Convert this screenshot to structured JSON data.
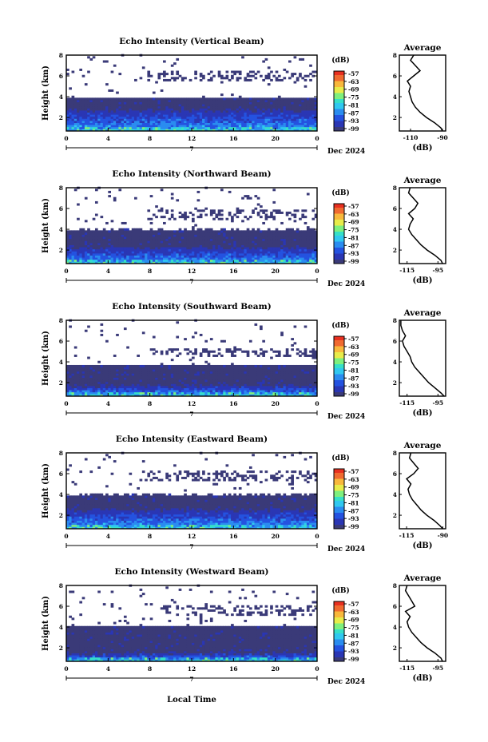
{
  "colors": {
    "colormap": [
      "#3a3a78",
      "#2a36b4",
      "#2452e0",
      "#2a8cf0",
      "#30c8f0",
      "#36e0c8",
      "#7ef07e",
      "#e8ec4a",
      "#f8b83c",
      "#f06a30",
      "#e83020"
    ],
    "background": "#ffffff"
  },
  "x_axis_label": "Local Time",
  "height_label": "Height (km)",
  "colorbar_unit": "(dB)",
  "colorbar_ticks": [
    "-57",
    "-63",
    "-69",
    "-75",
    "-81",
    "-87",
    "-93",
    "-99"
  ],
  "avg_title": "Average",
  "avg_unit": "(dB)",
  "date_label": "Dec 2024",
  "day_label": "7",
  "chart_data": [
    {
      "type": "heatmap",
      "title": "Echo Intensity (Vertical Beam)",
      "ylabel": "Height (km)",
      "xlabel": "Local Time",
      "xlim": [
        0,
        24
      ],
      "ylim": [
        0.7,
        8
      ],
      "x_ticks": [
        "0",
        "4",
        "8",
        "12",
        "16",
        "20",
        "0"
      ],
      "y_ticks": [
        "2",
        "4",
        "6",
        "8"
      ],
      "colorbar": {
        "unit": "(dB)",
        "ticks": [
          -57,
          -63,
          -69,
          -75,
          -81,
          -87,
          -93,
          -99
        ]
      },
      "layers": {
        "strong_top_km": 2.6,
        "cloud_top_km": 3.8,
        "upper_band_km": [
          5.5,
          6.5
        ],
        "upper_band_start_h": 7.5
      },
      "average_profile": {
        "title": "Average",
        "xlabel": "(dB)",
        "x_ticks": [
          "-110",
          "-90"
        ],
        "xlim": [
          -117,
          -88
        ],
        "heights": [
          0.7,
          1.0,
          1.5,
          2.0,
          2.5,
          3.0,
          3.5,
          4.0,
          4.5,
          5.0,
          5.5,
          6.0,
          6.5,
          7.0,
          7.5,
          8.0
        ],
        "values": [
          -90,
          -91,
          -95,
          -100,
          -104,
          -107,
          -109,
          -110,
          -111,
          -110,
          -112,
          -108,
          -104,
          -107,
          -110,
          -108
        ]
      }
    },
    {
      "type": "heatmap",
      "title": "Echo Intensity (Northward Beam)",
      "ylabel": "Height (km)",
      "xlabel": "Local Time",
      "xlim": [
        0,
        24
      ],
      "ylim": [
        0.7,
        8
      ],
      "x_ticks": [
        "0",
        "4",
        "8",
        "12",
        "16",
        "20",
        "0"
      ],
      "y_ticks": [
        "2",
        "4",
        "6",
        "8"
      ],
      "colorbar": {
        "unit": "(dB)",
        "ticks": [
          -57,
          -63,
          -69,
          -75,
          -81,
          -87,
          -93,
          -99
        ]
      },
      "layers": {
        "strong_top_km": 2.1,
        "cloud_top_km": 3.9,
        "upper_band_km": [
          4.8,
          5.8
        ],
        "upper_band_start_h": 7.5
      },
      "average_profile": {
        "title": "Average",
        "xlabel": "(dB)",
        "x_ticks": [
          "-115",
          "-95"
        ],
        "xlim": [
          -120,
          -90
        ],
        "heights": [
          0.7,
          1.0,
          1.5,
          2.0,
          2.5,
          3.0,
          3.5,
          4.0,
          4.5,
          5.0,
          5.5,
          6.0,
          6.5,
          7.0,
          7.5,
          8.0
        ],
        "values": [
          -92,
          -93,
          -97,
          -102,
          -106,
          -109,
          -112,
          -114,
          -113,
          -111,
          -114,
          -110,
          -108,
          -111,
          -114,
          -113
        ]
      }
    },
    {
      "type": "heatmap",
      "title": "Echo Intensity (Southward Beam)",
      "ylabel": "Height (km)",
      "xlabel": "Local Time",
      "xlim": [
        0,
        24
      ],
      "ylim": [
        0.7,
        8
      ],
      "x_ticks": [
        "0",
        "4",
        "8",
        "12",
        "16",
        "20",
        "0"
      ],
      "y_ticks": [
        "2",
        "4",
        "6",
        "8"
      ],
      "colorbar": {
        "unit": "(dB)",
        "ticks": [
          -57,
          -63,
          -69,
          -75,
          -81,
          -87,
          -93,
          -99
        ]
      },
      "layers": {
        "strong_top_km": 1.6,
        "cloud_top_km": 3.6,
        "upper_band_km": [
          4.5,
          5.3
        ],
        "upper_band_start_h": 8
      },
      "average_profile": {
        "title": "Average",
        "xlabel": "(dB)",
        "x_ticks": [
          "-115",
          "-95"
        ],
        "xlim": [
          -120,
          -90
        ],
        "heights": [
          0.7,
          1.0,
          1.5,
          2.0,
          2.5,
          3.0,
          3.5,
          4.0,
          4.5,
          5.0,
          5.5,
          6.0,
          6.5,
          7.0,
          7.5,
          8.0
        ],
        "values": [
          -91,
          -93,
          -97,
          -101,
          -104,
          -107,
          -110,
          -112,
          -113,
          -115,
          -117,
          -118,
          -116,
          -118,
          -119,
          -119
        ]
      }
    },
    {
      "type": "heatmap",
      "title": "Echo Intensity (Eastward Beam)",
      "ylabel": "Height (km)",
      "xlabel": "Local Time",
      "xlim": [
        0,
        24
      ],
      "ylim": [
        0.7,
        8
      ],
      "x_ticks": [
        "0",
        "4",
        "8",
        "12",
        "16",
        "20",
        "0"
      ],
      "y_ticks": [
        "2",
        "4",
        "6",
        "8"
      ],
      "colorbar": {
        "unit": "(dB)",
        "ticks": [
          -57,
          -63,
          -69,
          -75,
          -81,
          -87,
          -93,
          -99
        ]
      },
      "layers": {
        "strong_top_km": 2.4,
        "cloud_top_km": 3.9,
        "upper_band_km": [
          5.2,
          6.3
        ],
        "upper_band_start_h": 7.5
      },
      "average_profile": {
        "title": "Average",
        "xlabel": "(dB)",
        "x_ticks": [
          "-115",
          "-90"
        ],
        "xlim": [
          -120,
          -88
        ],
        "heights": [
          0.7,
          1.0,
          1.5,
          2.0,
          2.5,
          3.0,
          3.5,
          4.0,
          4.5,
          5.0,
          5.5,
          6.0,
          6.5,
          7.0,
          7.5,
          8.0
        ],
        "values": [
          -90,
          -92,
          -96,
          -101,
          -105,
          -108,
          -111,
          -113,
          -114,
          -112,
          -115,
          -110,
          -107,
          -110,
          -113,
          -112
        ]
      }
    },
    {
      "type": "heatmap",
      "title": "Echo Intensity (Westward Beam)",
      "ylabel": "Height (km)",
      "xlabel": "Local Time",
      "xlim": [
        0,
        24
      ],
      "ylim": [
        0.7,
        8
      ],
      "x_ticks": [
        "0",
        "4",
        "8",
        "12",
        "16",
        "20",
        "0"
      ],
      "y_ticks": [
        "2",
        "4",
        "6",
        "8"
      ],
      "colorbar": {
        "unit": "(dB)",
        "ticks": [
          -57,
          -63,
          -69,
          -75,
          -81,
          -87,
          -93,
          -99
        ]
      },
      "layers": {
        "strong_top_km": 1.4,
        "cloud_top_km": 4.0,
        "upper_band_km": [
          5.0,
          6.0
        ],
        "upper_band_start_h": 9
      },
      "average_profile": {
        "title": "Average",
        "xlabel": "(dB)",
        "x_ticks": [
          "-115",
          "-95"
        ],
        "xlim": [
          -120,
          -90
        ],
        "heights": [
          0.7,
          1.0,
          1.5,
          2.0,
          2.5,
          3.0,
          3.5,
          4.0,
          4.5,
          5.0,
          5.5,
          6.0,
          6.5,
          7.0,
          7.5,
          8.0
        ],
        "values": [
          -92,
          -93,
          -97,
          -102,
          -106,
          -109,
          -112,
          -114,
          -115,
          -113,
          -116,
          -110,
          -112,
          -114,
          -116,
          -115
        ]
      }
    }
  ]
}
